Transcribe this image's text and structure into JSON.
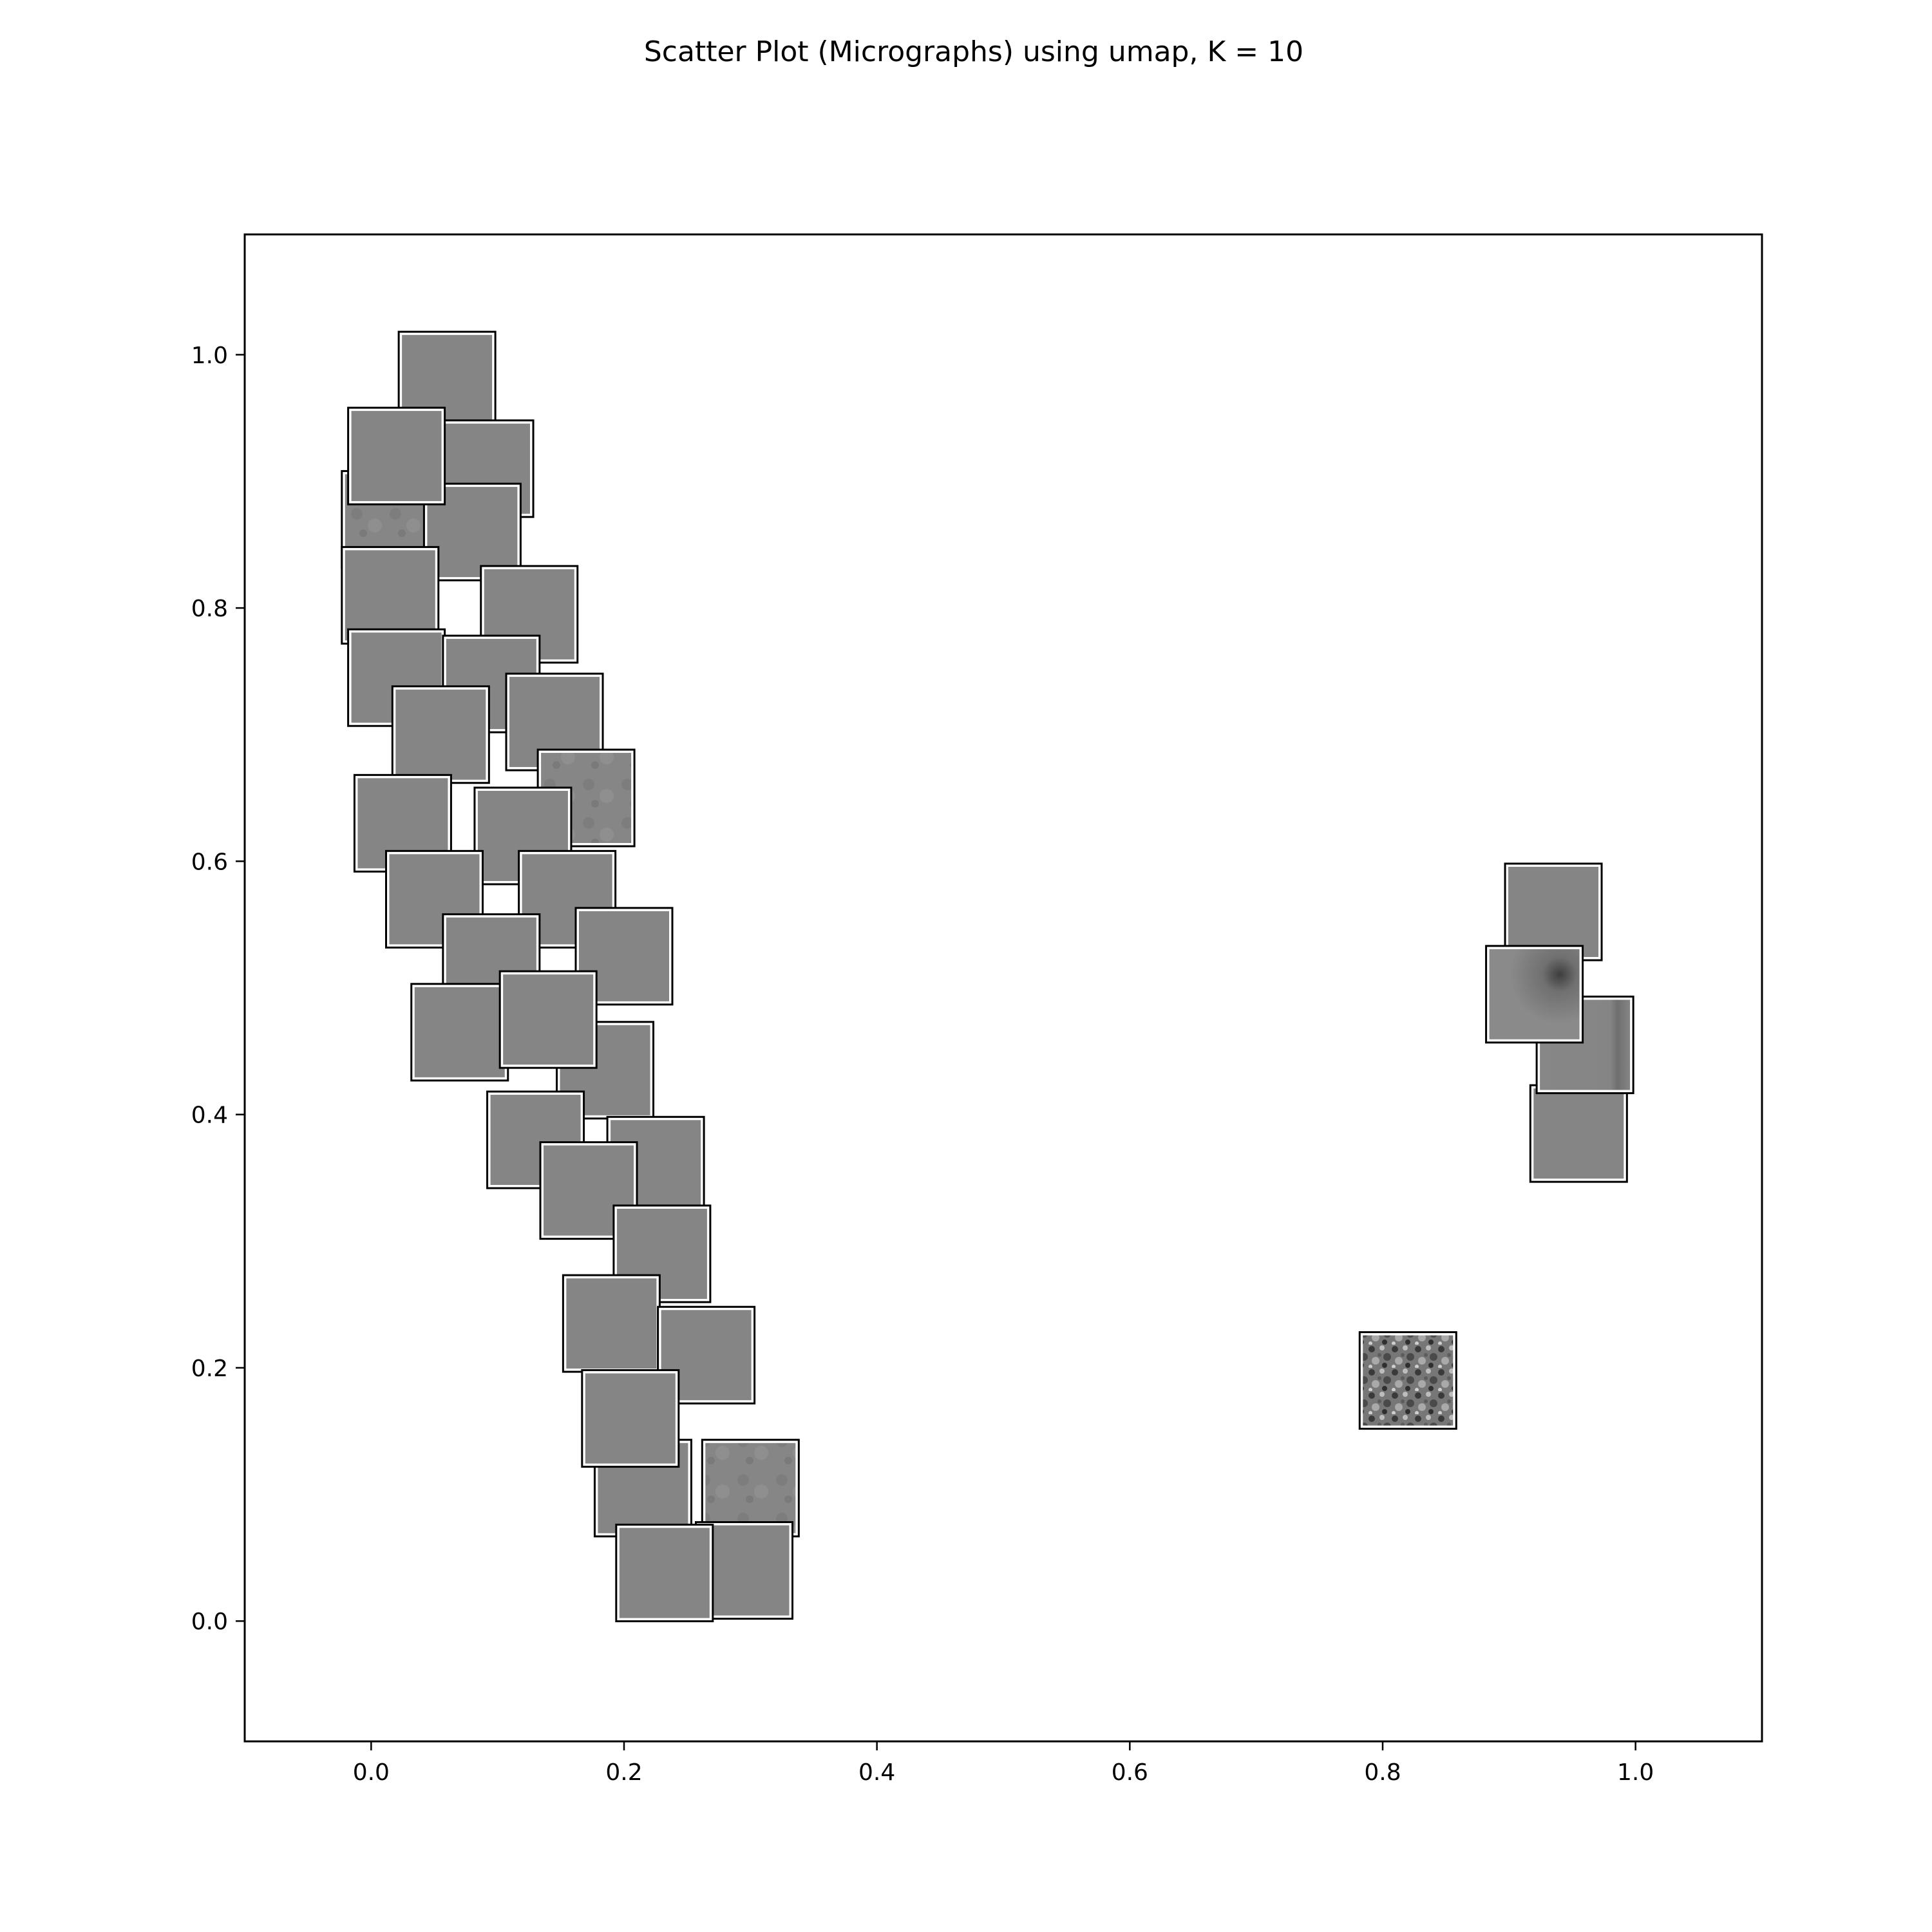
{
  "chart_data": {
    "type": "scatter",
    "title": "Scatter Plot (Micrographs) using umap, K = 10",
    "xlabel": "",
    "ylabel": "",
    "xlim": [
      -0.1,
      1.1
    ],
    "ylim": [
      -0.095,
      1.095
    ],
    "xticks": [
      0.0,
      0.2,
      0.4,
      0.6,
      0.8,
      1.0
    ],
    "yticks": [
      0.0,
      0.2,
      0.4,
      0.6,
      0.8,
      1.0
    ],
    "xtick_labels": [
      "0.0",
      "0.2",
      "0.4",
      "0.6",
      "0.8",
      "1.0"
    ],
    "ytick_labels": [
      "0.0",
      "0.2",
      "0.4",
      "0.6",
      "0.8",
      "1.0"
    ],
    "grid": false,
    "marker": "micrograph thumbnail",
    "colors": {
      "thumbnail_fill": "#858585",
      "thumbnail_frame": "#000000",
      "thumbnail_inner_border": "#ffffff",
      "texture_dark": "#3a3a3a",
      "texture_light": "#bdbdbd"
    },
    "points": [
      {
        "x": 0.06,
        "y": 0.98,
        "texture": "plain"
      },
      {
        "x": 0.09,
        "y": 0.91,
        "texture": "plain"
      },
      {
        "x": 0.015,
        "y": 0.87,
        "texture": "mottled"
      },
      {
        "x": 0.08,
        "y": 0.86,
        "texture": "plain"
      },
      {
        "x": 0.02,
        "y": 0.92,
        "texture": "plain"
      },
      {
        "x": 0.015,
        "y": 0.81,
        "texture": "plain"
      },
      {
        "x": 0.125,
        "y": 0.795,
        "texture": "plain"
      },
      {
        "x": 0.02,
        "y": 0.745,
        "texture": "plain"
      },
      {
        "x": 0.095,
        "y": 0.74,
        "texture": "plain"
      },
      {
        "x": 0.055,
        "y": 0.7,
        "texture": "plain"
      },
      {
        "x": 0.145,
        "y": 0.71,
        "texture": "plain"
      },
      {
        "x": 0.025,
        "y": 0.63,
        "texture": "plain"
      },
      {
        "x": 0.17,
        "y": 0.65,
        "texture": "mottled"
      },
      {
        "x": 0.12,
        "y": 0.62,
        "texture": "plain"
      },
      {
        "x": 0.155,
        "y": 0.57,
        "texture": "plain"
      },
      {
        "x": 0.05,
        "y": 0.57,
        "texture": "plain"
      },
      {
        "x": 0.095,
        "y": 0.52,
        "texture": "plain"
      },
      {
        "x": 0.2,
        "y": 0.525,
        "texture": "plain"
      },
      {
        "x": 0.07,
        "y": 0.465,
        "texture": "plain"
      },
      {
        "x": 0.185,
        "y": 0.435,
        "texture": "plain"
      },
      {
        "x": 0.14,
        "y": 0.475,
        "texture": "plain"
      },
      {
        "x": 0.13,
        "y": 0.38,
        "texture": "plain"
      },
      {
        "x": 0.225,
        "y": 0.36,
        "texture": "plain"
      },
      {
        "x": 0.172,
        "y": 0.34,
        "texture": "plain"
      },
      {
        "x": 0.23,
        "y": 0.29,
        "texture": "plain"
      },
      {
        "x": 0.19,
        "y": 0.235,
        "texture": "plain"
      },
      {
        "x": 0.265,
        "y": 0.21,
        "texture": "plain"
      },
      {
        "x": 0.3,
        "y": 0.105,
        "texture": "mottled"
      },
      {
        "x": 0.215,
        "y": 0.105,
        "texture": "plain"
      },
      {
        "x": 0.205,
        "y": 0.16,
        "texture": "plain"
      },
      {
        "x": 0.295,
        "y": 0.04,
        "texture": "plain"
      },
      {
        "x": 0.232,
        "y": 0.038,
        "texture": "plain"
      },
      {
        "x": 0.82,
        "y": 0.19,
        "texture": "grainy"
      },
      {
        "x": 0.935,
        "y": 0.56,
        "texture": "plain"
      },
      {
        "x": 0.955,
        "y": 0.385,
        "texture": "plain"
      },
      {
        "x": 0.96,
        "y": 0.455,
        "texture": "streak"
      },
      {
        "x": 0.92,
        "y": 0.495,
        "texture": "dark-corner"
      }
    ]
  }
}
